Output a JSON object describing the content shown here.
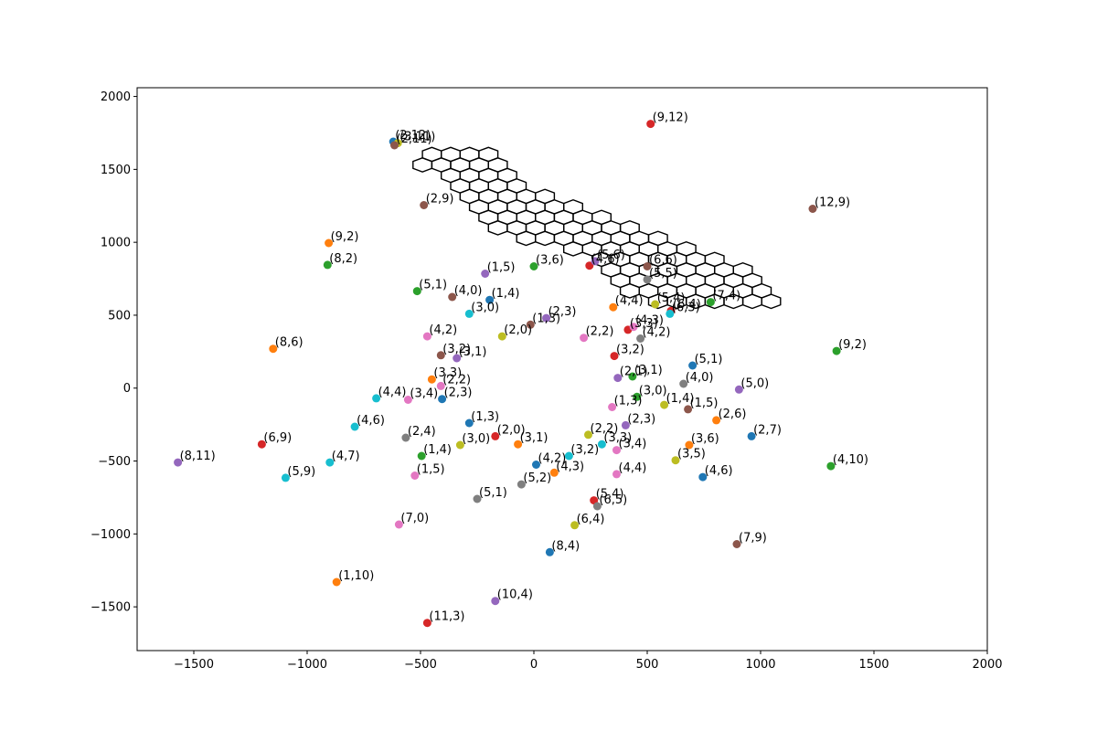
{
  "chart_data": {
    "type": "scatter",
    "title": "",
    "xlabel": "",
    "ylabel": "",
    "xlim": [
      -1750,
      2000
    ],
    "ylim": [
      -1800,
      2060
    ],
    "grid": false,
    "x_ticks": [
      -1500,
      -1000,
      -500,
      0,
      500,
      1000,
      1500,
      2000
    ],
    "y_ticks": [
      -1500,
      -1000,
      -500,
      0,
      500,
      1000,
      1500,
      2000
    ],
    "x_tick_labels": [
      "−1500",
      "−1000",
      "−500",
      "0",
      "500",
      "1000",
      "1500",
      "2000"
    ],
    "y_tick_labels": [
      "−1500",
      "−1000",
      "−500",
      "0",
      "500",
      "1000",
      "1500",
      "2000"
    ],
    "palette": [
      "#1f77b4",
      "#ff7f0e",
      "#2ca02c",
      "#d62728",
      "#9467bd",
      "#8c564b",
      "#e377c2",
      "#7f7f7f",
      "#bcbd22",
      "#17becf"
    ],
    "hex_grid": {
      "hex_radius": 48,
      "origin": [
        -450,
        1603
      ],
      "rows": [
        {
          "r": 0,
          "q_from": 0,
          "q_to": 3
        },
        {
          "r": 1,
          "q_from": -1,
          "q_to": 3
        },
        {
          "r": 2,
          "q_from": 0,
          "q_to": 3
        },
        {
          "r": 3,
          "q_from": 0,
          "q_to": 3
        },
        {
          "r": 4,
          "q_from": 0,
          "q_to": 4
        },
        {
          "r": 5,
          "q_from": 0,
          "q_to": 5
        },
        {
          "r": 6,
          "q_from": 0,
          "q_to": 6
        },
        {
          "r": 7,
          "q_from": 0,
          "q_to": 7
        },
        {
          "r": 8,
          "q_from": 1,
          "q_to": 8
        },
        {
          "r": 9,
          "q_from": 3,
          "q_to": 9
        },
        {
          "r": 10,
          "q_from": 4,
          "q_to": 10
        },
        {
          "r": 11,
          "q_from": 4,
          "q_to": 11
        },
        {
          "r": 12,
          "q_from": 4,
          "q_to": 11
        },
        {
          "r": 13,
          "q_from": 4,
          "q_to": 11
        },
        {
          "r": 14,
          "q_from": 5,
          "q_to": 11
        }
      ]
    },
    "points": [
      {
        "x": -620,
        "y": 1690,
        "label": "(2,12)",
        "color": "#1f77b4"
      },
      {
        "x": -600,
        "y": 1680,
        "label": "(3,11)",
        "color": "#bcbd22"
      },
      {
        "x": -615,
        "y": 1665,
        "label": "(2,11)",
        "color": "#8c564b"
      },
      {
        "x": 515,
        "y": 1812,
        "label": "(9,12)",
        "color": "#d62728"
      },
      {
        "x": -485,
        "y": 1255,
        "label": "(2,9)",
        "color": "#8c564b"
      },
      {
        "x": 1230,
        "y": 1230,
        "label": "(12,9)",
        "color": "#8c564b"
      },
      {
        "x": -905,
        "y": 995,
        "label": "(9,2)",
        "color": "#ff7f0e"
      },
      {
        "x": -910,
        "y": 845,
        "label": "(8,2)",
        "color": "#2ca02c"
      },
      {
        "x": -515,
        "y": 665,
        "label": "(5,1)",
        "color": "#2ca02c"
      },
      {
        "x": -360,
        "y": 625,
        "label": "(4,0)",
        "color": "#8c564b"
      },
      {
        "x": -215,
        "y": 785,
        "label": "(1,5)",
        "color": "#9467bd"
      },
      {
        "x": -195,
        "y": 605,
        "label": "(1,4)",
        "color": "#1f77b4"
      },
      {
        "x": -285,
        "y": 510,
        "label": "(3,0)",
        "color": "#17becf"
      },
      {
        "x": 0,
        "y": 835,
        "label": "(3,6)",
        "color": "#2ca02c"
      },
      {
        "x": 245,
        "y": 840,
        "label": "(4,6)",
        "color": "#d62728"
      },
      {
        "x": 270,
        "y": 870,
        "label": "(5,6)",
        "color": "#9467bd"
      },
      {
        "x": 500,
        "y": 835,
        "label": "(6,6)",
        "color": "#8c564b"
      },
      {
        "x": 500,
        "y": 745,
        "label": "(5,5)",
        "color": "#7f7f7f"
      },
      {
        "x": 350,
        "y": 555,
        "label": "(4,4)",
        "color": "#ff7f0e"
      },
      {
        "x": 535,
        "y": 575,
        "label": "(5,4)",
        "color": "#bcbd22"
      },
      {
        "x": 605,
        "y": 530,
        "label": "(6,4)",
        "color": "#d62728"
      },
      {
        "x": 600,
        "y": 510,
        "label": "(6,3)",
        "color": "#17becf"
      },
      {
        "x": 780,
        "y": 590,
        "label": "(7,4)",
        "color": "#2ca02c"
      },
      {
        "x": 55,
        "y": 480,
        "label": "(2,3)",
        "color": "#9467bd"
      },
      {
        "x": -15,
        "y": 435,
        "label": "(1,3)",
        "color": "#8c564b"
      },
      {
        "x": -140,
        "y": 355,
        "label": "(2,0)",
        "color": "#bcbd22"
      },
      {
        "x": 220,
        "y": 345,
        "label": "(2,2)",
        "color": "#e377c2"
      },
      {
        "x": 415,
        "y": 400,
        "label": "(3,3)",
        "color": "#d62728"
      },
      {
        "x": 440,
        "y": 420,
        "label": "(4,3)",
        "color": "#e377c2"
      },
      {
        "x": 470,
        "y": 340,
        "label": "(4,2)",
        "color": "#7f7f7f"
      },
      {
        "x": -470,
        "y": 355,
        "label": "(4,2)",
        "color": "#e377c2"
      },
      {
        "x": -410,
        "y": 225,
        "label": "(3,2)",
        "color": "#8c564b"
      },
      {
        "x": -340,
        "y": 205,
        "label": "(3,1)",
        "color": "#9467bd"
      },
      {
        "x": -450,
        "y": 60,
        "label": "(3,3)",
        "color": "#ff7f0e"
      },
      {
        "x": -410,
        "y": 15,
        "label": "(2,2)",
        "color": "#e377c2"
      },
      {
        "x": -405,
        "y": -75,
        "label": "(2,3)",
        "color": "#1f77b4"
      },
      {
        "x": -695,
        "y": -70,
        "label": "(4,4)",
        "color": "#17becf"
      },
      {
        "x": -555,
        "y": -80,
        "label": "(3,4)",
        "color": "#e377c2"
      },
      {
        "x": -1150,
        "y": 270,
        "label": "(8,6)",
        "color": "#ff7f0e"
      },
      {
        "x": 355,
        "y": 220,
        "label": "(3,2)",
        "color": "#d62728"
      },
      {
        "x": 700,
        "y": 155,
        "label": "(5,1)",
        "color": "#1f77b4"
      },
      {
        "x": 1335,
        "y": 255,
        "label": "(9,2)",
        "color": "#2ca02c"
      },
      {
        "x": 370,
        "y": 70,
        "label": "(2,1)",
        "color": "#9467bd"
      },
      {
        "x": 435,
        "y": 80,
        "label": "(3,1)",
        "color": "#2ca02c"
      },
      {
        "x": 660,
        "y": 30,
        "label": "(4,0)",
        "color": "#7f7f7f"
      },
      {
        "x": 455,
        "y": -60,
        "label": "(3,0)",
        "color": "#2ca02c"
      },
      {
        "x": 905,
        "y": -10,
        "label": "(5,0)",
        "color": "#9467bd"
      },
      {
        "x": 345,
        "y": -130,
        "label": "(1,3)",
        "color": "#e377c2"
      },
      {
        "x": 575,
        "y": -115,
        "label": "(1,4)",
        "color": "#bcbd22"
      },
      {
        "x": 680,
        "y": -145,
        "label": "(1,5)",
        "color": "#8c564b"
      },
      {
        "x": 805,
        "y": -220,
        "label": "(2,6)",
        "color": "#ff7f0e"
      },
      {
        "x": 405,
        "y": -255,
        "label": "(2,3)",
        "color": "#9467bd"
      },
      {
        "x": 960,
        "y": -330,
        "label": "(2,7)",
        "color": "#1f77b4"
      },
      {
        "x": -790,
        "y": -265,
        "label": "(4,6)",
        "color": "#17becf"
      },
      {
        "x": -285,
        "y": -240,
        "label": "(1,3)",
        "color": "#1f77b4"
      },
      {
        "x": -170,
        "y": -330,
        "label": "(2,0)",
        "color": "#d62728"
      },
      {
        "x": -1200,
        "y": -385,
        "label": "(6,9)",
        "color": "#d62728"
      },
      {
        "x": -565,
        "y": -340,
        "label": "(2,4)",
        "color": "#7f7f7f"
      },
      {
        "x": -495,
        "y": -465,
        "label": "(1,4)",
        "color": "#2ca02c"
      },
      {
        "x": -325,
        "y": -390,
        "label": "(3,0)",
        "color": "#bcbd22"
      },
      {
        "x": -70,
        "y": -385,
        "label": "(3,1)",
        "color": "#ff7f0e"
      },
      {
        "x": 240,
        "y": -320,
        "label": "(2,2)",
        "color": "#bcbd22"
      },
      {
        "x": 300,
        "y": -385,
        "label": "(3,3)",
        "color": "#17becf"
      },
      {
        "x": 365,
        "y": -425,
        "label": "(3,4)",
        "color": "#e377c2"
      },
      {
        "x": 685,
        "y": -390,
        "label": "(3,6)",
        "color": "#ff7f0e"
      },
      {
        "x": 625,
        "y": -495,
        "label": "(3,5)",
        "color": "#bcbd22"
      },
      {
        "x": 155,
        "y": -465,
        "label": "(3,2)",
        "color": "#17becf"
      },
      {
        "x": 10,
        "y": -525,
        "label": "(4,2)",
        "color": "#1f77b4"
      },
      {
        "x": 90,
        "y": -580,
        "label": "(4,3)",
        "color": "#ff7f0e"
      },
      {
        "x": 365,
        "y": -590,
        "label": "(4,4)",
        "color": "#e377c2"
      },
      {
        "x": 745,
        "y": -610,
        "label": "(4,6)",
        "color": "#1f77b4"
      },
      {
        "x": 1310,
        "y": -535,
        "label": "(4,10)",
        "color": "#2ca02c"
      },
      {
        "x": -1570,
        "y": -510,
        "label": "(8,11)",
        "color": "#9467bd"
      },
      {
        "x": -1095,
        "y": -615,
        "label": "(5,9)",
        "color": "#17becf"
      },
      {
        "x": -900,
        "y": -510,
        "label": "(4,7)",
        "color": "#17becf"
      },
      {
        "x": -525,
        "y": -600,
        "label": "(1,5)",
        "color": "#e377c2"
      },
      {
        "x": -250,
        "y": -760,
        "label": "(5,1)",
        "color": "#7f7f7f"
      },
      {
        "x": -55,
        "y": -660,
        "label": "(5,2)",
        "color": "#7f7f7f"
      },
      {
        "x": 265,
        "y": -770,
        "label": "(5,4)",
        "color": "#d62728"
      },
      {
        "x": 280,
        "y": -810,
        "label": "(6,5)",
        "color": "#7f7f7f"
      },
      {
        "x": 180,
        "y": -940,
        "label": "(6,4)",
        "color": "#bcbd22"
      },
      {
        "x": -595,
        "y": -935,
        "label": "(7,0)",
        "color": "#e377c2"
      },
      {
        "x": 895,
        "y": -1070,
        "label": "(7,9)",
        "color": "#8c564b"
      },
      {
        "x": 70,
        "y": -1125,
        "label": "(8,4)",
        "color": "#1f77b4"
      },
      {
        "x": -870,
        "y": -1330,
        "label": "(1,10)",
        "color": "#ff7f0e"
      },
      {
        "x": -170,
        "y": -1460,
        "label": "(10,4)",
        "color": "#9467bd"
      },
      {
        "x": -470,
        "y": -1610,
        "label": "(11,3)",
        "color": "#d62728"
      }
    ]
  }
}
